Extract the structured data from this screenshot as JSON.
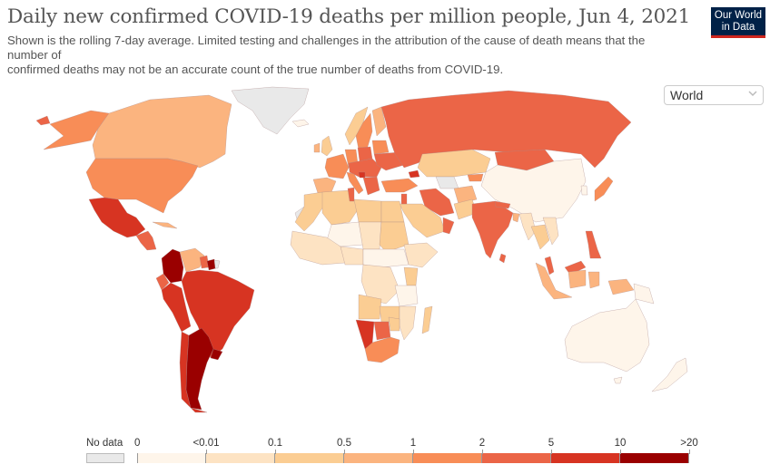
{
  "header": {
    "title": "Daily new confirmed COVID-19 deaths per million people, Jun 4, 2021",
    "subtitle_line1": "Shown is the rolling 7-day average. Limited testing and challenges in the attribution of the cause of death means that the",
    "subtitle_line2": "number of",
    "subtitle_line3": "confirmed deaths may not be an accurate count of the true number of deaths from COVID-19.",
    "logo_line1": "Our World",
    "logo_line2": "in Data"
  },
  "region_selector": {
    "selected": "World",
    "icon": "chevron-down-icon"
  },
  "legend": {
    "nodata_label": "No data",
    "nodata_color": "#e9e9e9",
    "bins": [
      {
        "from": "0",
        "to": "<0.01",
        "color": "#fef5ea"
      },
      {
        "from": "<0.01",
        "to": "0.1",
        "color": "#fde3c3"
      },
      {
        "from": "0.1",
        "to": "0.5",
        "color": "#fbcd93"
      },
      {
        "from": "0.5",
        "to": "1",
        "color": "#fbb47f"
      },
      {
        "from": "1",
        "to": "2",
        "color": "#f88d57"
      },
      {
        "from": "2",
        "to": "5",
        "color": "#eb6547"
      },
      {
        "from": "5",
        "to": "10",
        "color": "#d73422"
      },
      {
        "from": "10",
        "to": ">20",
        "color": "#9a0000"
      }
    ],
    "tick_labels": [
      "0",
      "<0.01",
      "0.1",
      "0.5",
      "1",
      "2",
      "5",
      "10",
      ">20"
    ]
  },
  "chart_data": {
    "type": "choropleth",
    "title": "Daily new confirmed COVID-19 deaths per million people, Jun 4, 2021",
    "metric": "Daily new confirmed COVID-19 deaths per million (7-day rolling average)",
    "region": "World",
    "legend_placement": "bottom",
    "bins": [
      "0",
      "<0.01",
      "0.1",
      "0.5",
      "1",
      "2",
      "5",
      "10",
      ">20"
    ],
    "regions": [
      {
        "name": "Greenland",
        "bin": "no data"
      },
      {
        "name": "Alaska (USA)",
        "bin": "2-5"
      },
      {
        "name": "Canada",
        "bin": "0.5-1"
      },
      {
        "name": "United States",
        "bin": "1-2"
      },
      {
        "name": "Mexico",
        "bin": "5-10"
      },
      {
        "name": "Central America",
        "bin": "2-5"
      },
      {
        "name": "Cuba",
        "bin": "0.5-1"
      },
      {
        "name": "Colombia",
        "bin": ">10"
      },
      {
        "name": "Venezuela",
        "bin": "0.5-1"
      },
      {
        "name": "Guyana",
        "bin": "2-5"
      },
      {
        "name": "Suriname",
        "bin": ">10"
      },
      {
        "name": "French Guiana",
        "bin": "no data"
      },
      {
        "name": "Ecuador",
        "bin": "2-5"
      },
      {
        "name": "Peru",
        "bin": "5-10"
      },
      {
        "name": "Brazil",
        "bin": "5-10"
      },
      {
        "name": "Bolivia",
        "bin": "5-10"
      },
      {
        "name": "Paraguay",
        "bin": ">10"
      },
      {
        "name": "Uruguay",
        "bin": ">10"
      },
      {
        "name": "Argentina",
        "bin": ">10"
      },
      {
        "name": "Chile",
        "bin": "5-10"
      },
      {
        "name": "Iceland",
        "bin": "0-0.01"
      },
      {
        "name": "United Kingdom",
        "bin": "0.1-0.5"
      },
      {
        "name": "Ireland",
        "bin": "0.5-1"
      },
      {
        "name": "Norway",
        "bin": "0.1-0.5"
      },
      {
        "name": "Sweden",
        "bin": "1-2"
      },
      {
        "name": "Finland",
        "bin": "0.5-1"
      },
      {
        "name": "France",
        "bin": "1-2"
      },
      {
        "name": "Spain",
        "bin": "0.5-1"
      },
      {
        "name": "Portugal",
        "bin": "0.1-0.5"
      },
      {
        "name": "Germany",
        "bin": "1-2"
      },
      {
        "name": "Poland",
        "bin": "2-5"
      },
      {
        "name": "Ukraine",
        "bin": "2-5"
      },
      {
        "name": "Belarus",
        "bin": "1-2"
      },
      {
        "name": "Italy",
        "bin": "1-2"
      },
      {
        "name": "Bosnia and Herzegovina",
        "bin": "5-10"
      },
      {
        "name": "Georgia",
        "bin": "5-10"
      },
      {
        "name": "Russia",
        "bin": "2-5"
      },
      {
        "name": "Turkey",
        "bin": "1-2"
      },
      {
        "name": "Kazakhstan",
        "bin": "0.1-0.5"
      },
      {
        "name": "Mongolia",
        "bin": "2-5"
      },
      {
        "name": "China",
        "bin": "0-0.01"
      },
      {
        "name": "Japan",
        "bin": "1-2"
      },
      {
        "name": "Iran",
        "bin": "2-5"
      },
      {
        "name": "Afghanistan",
        "bin": "0.5-1"
      },
      {
        "name": "Pakistan",
        "bin": "0.1-0.5"
      },
      {
        "name": "India",
        "bin": "2-5"
      },
      {
        "name": "Nepal",
        "bin": "2-5"
      },
      {
        "name": "Bangladesh",
        "bin": "0.5-1"
      },
      {
        "name": "Myanmar",
        "bin": "<0.01-0.1"
      },
      {
        "name": "Thailand",
        "bin": "0.1-0.5"
      },
      {
        "name": "Malaysia",
        "bin": "2-5"
      },
      {
        "name": "Indonesia",
        "bin": "0.5-1"
      },
      {
        "name": "Philippines",
        "bin": "2-5"
      },
      {
        "name": "Papua New Guinea",
        "bin": "0-0.01"
      },
      {
        "name": "Australia",
        "bin": "0-0.01"
      },
      {
        "name": "New Zealand",
        "bin": "0-0.01"
      },
      {
        "name": "Oman",
        "bin": "2-5"
      },
      {
        "name": "Saudi Arabia",
        "bin": "0.1-0.5"
      },
      {
        "name": "Tunisia",
        "bin": "2-5"
      },
      {
        "name": "Algeria",
        "bin": "0.1-0.5"
      },
      {
        "name": "Libya",
        "bin": "0.1-0.5"
      },
      {
        "name": "Egypt",
        "bin": "0.1-0.5"
      },
      {
        "name": "Western Sahara",
        "bin": "no data"
      },
      {
        "name": "Sudan",
        "bin": "0.1-0.5"
      },
      {
        "name": "Niger",
        "bin": "0-0.01"
      },
      {
        "name": "Nigeria",
        "bin": "<0.01-0.1"
      },
      {
        "name": "DR Congo",
        "bin": "<0.01-0.1"
      },
      {
        "name": "Tanzania",
        "bin": "0-0.01"
      },
      {
        "name": "Kenya",
        "bin": "0.1-0.5"
      },
      {
        "name": "Ethiopia",
        "bin": "<0.01-0.1"
      },
      {
        "name": "Angola",
        "bin": "0.1-0.5"
      },
      {
        "name": "Zambia",
        "bin": "0.1-0.5"
      },
      {
        "name": "Namibia",
        "bin": "5-10"
      },
      {
        "name": "Botswana",
        "bin": "2-5"
      },
      {
        "name": "South Africa",
        "bin": "1-2"
      },
      {
        "name": "Madagascar",
        "bin": "0.1-0.5"
      }
    ]
  }
}
